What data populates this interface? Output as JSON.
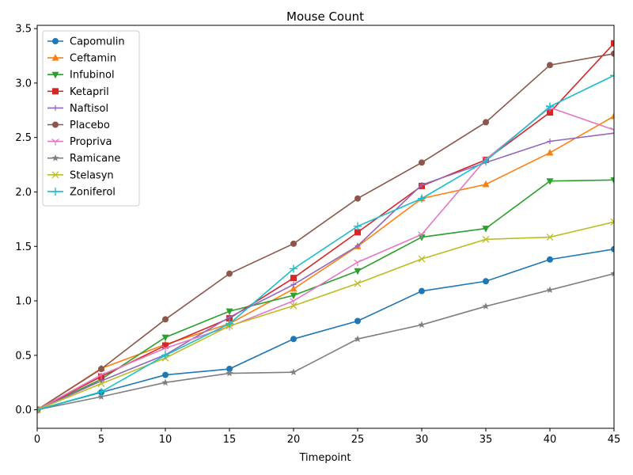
{
  "chart_data": {
    "type": "line",
    "title": "Mouse Count",
    "xlabel": "Timepoint",
    "ylabel": "",
    "xlim": [
      0,
      45
    ],
    "ylim": [
      -0.17,
      3.53
    ],
    "x_ticks": [
      0,
      5,
      10,
      15,
      20,
      25,
      30,
      35,
      40,
      45
    ],
    "y_ticks": [
      0.0,
      0.5,
      1.0,
      1.5,
      2.0,
      2.5,
      3.0,
      3.5
    ],
    "x_tick_labels": [
      "0",
      "5",
      "10",
      "15",
      "20",
      "25",
      "30",
      "35",
      "40",
      "45"
    ],
    "y_tick_labels": [
      "0.0",
      "0.5",
      "1.0",
      "1.5",
      "2.0",
      "2.5",
      "3.0",
      "3.5"
    ],
    "grid": false,
    "legend_position": "top-left",
    "x": [
      0,
      5,
      10,
      15,
      20,
      25,
      30,
      35,
      40,
      45
    ],
    "series": [
      {
        "name": "Capomulin",
        "color": "#1f77b4",
        "marker": "circle",
        "values": [
          0.0,
          0.16,
          0.32,
          0.375,
          0.65,
          0.815,
          1.09,
          1.18,
          1.38,
          1.475
        ]
      },
      {
        "name": "Ceftamin",
        "color": "#ff7f0e",
        "marker": "triangle-up",
        "values": [
          0.0,
          0.38,
          0.6,
          0.79,
          1.11,
          1.5,
          1.94,
          2.07,
          2.36,
          2.695
        ]
      },
      {
        "name": "Infubinol",
        "color": "#2ca02c",
        "marker": "triangle-down",
        "values": [
          0.0,
          0.28,
          0.665,
          0.905,
          1.05,
          1.275,
          1.585,
          1.665,
          2.1,
          2.11
        ]
      },
      {
        "name": "Ketapril",
        "color": "#d62728",
        "marker": "square",
        "values": [
          0.0,
          0.305,
          0.59,
          0.84,
          1.21,
          1.63,
          2.055,
          2.295,
          2.73,
          3.365
        ]
      },
      {
        "name": "Naftisol",
        "color": "#9467bd",
        "marker": "plus-thin",
        "values": [
          0.0,
          0.265,
          0.505,
          0.85,
          1.15,
          1.505,
          2.065,
          2.27,
          2.465,
          2.54
        ]
      },
      {
        "name": "Placebo",
        "color": "#8c564b",
        "marker": "circle",
        "values": [
          0.0,
          0.375,
          0.83,
          1.25,
          1.525,
          1.94,
          2.27,
          2.64,
          3.165,
          3.27
        ]
      },
      {
        "name": "Propriva",
        "color": "#e377c2",
        "marker": "tri-down",
        "values": [
          0.0,
          0.32,
          0.565,
          0.765,
          1.0,
          1.355,
          1.61,
          2.3,
          2.775,
          2.57
        ]
      },
      {
        "name": "Ramicane",
        "color": "#7f7f7f",
        "marker": "star",
        "values": [
          0.0,
          0.12,
          0.25,
          0.335,
          0.345,
          0.65,
          0.78,
          0.95,
          1.1,
          1.25
        ]
      },
      {
        "name": "Stelasyn",
        "color": "#bcbd22",
        "marker": "x",
        "values": [
          0.0,
          0.24,
          0.475,
          0.77,
          0.955,
          1.16,
          1.385,
          1.565,
          1.585,
          1.725
        ]
      },
      {
        "name": "Zoniferol",
        "color": "#17becf",
        "marker": "plus",
        "values": [
          0.0,
          0.165,
          0.5,
          0.79,
          1.295,
          1.685,
          1.94,
          2.285,
          2.785,
          3.07
        ]
      }
    ]
  }
}
